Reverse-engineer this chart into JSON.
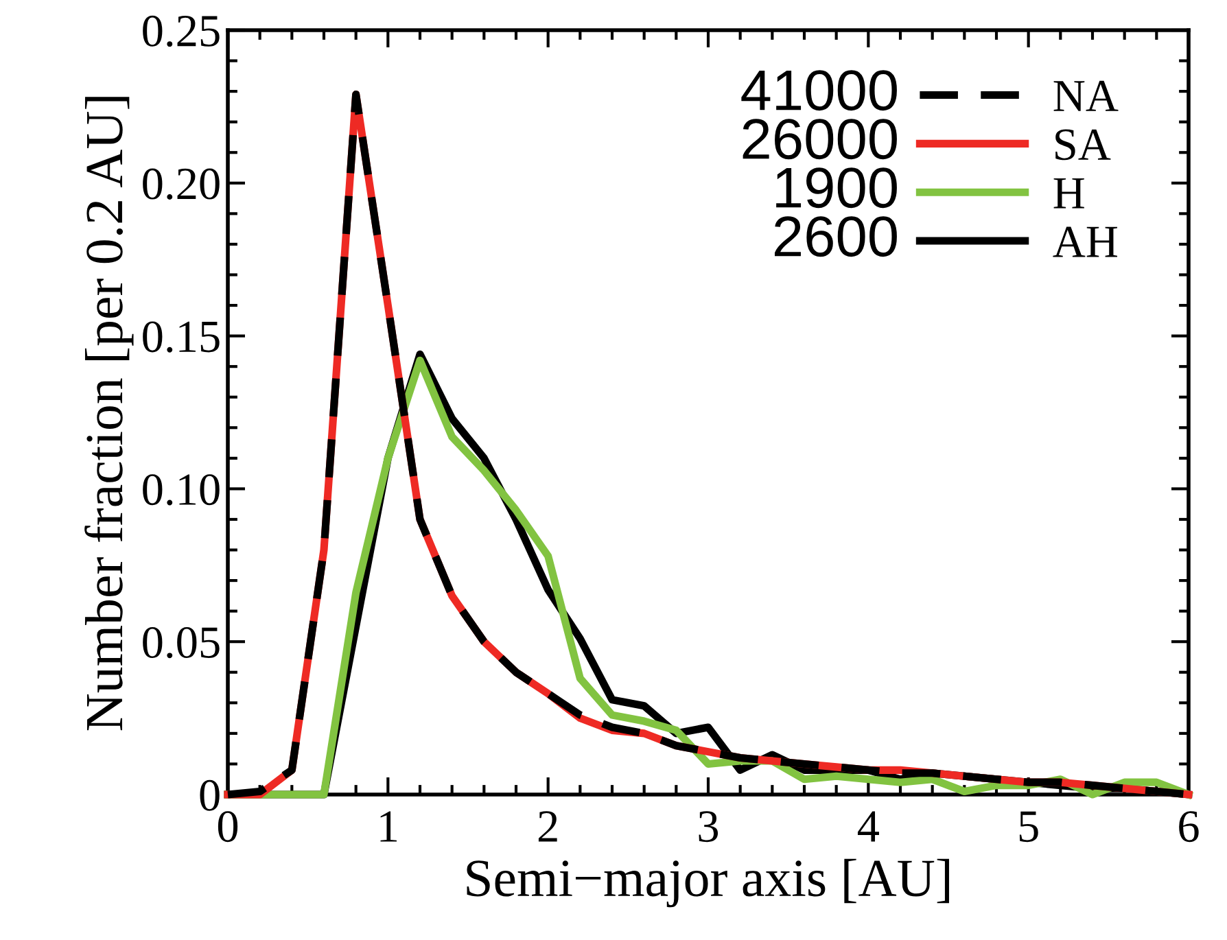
{
  "chart_data": {
    "type": "line",
    "xlabel": "Semi−major axis [AU]",
    "ylabel": "Number fraction [per 0.2 AU]",
    "x": [
      0,
      0.2,
      0.4,
      0.6,
      0.8,
      1.0,
      1.2,
      1.4,
      1.6,
      1.8,
      2.0,
      2.2,
      2.4,
      2.6,
      2.8,
      3.0,
      3.2,
      3.4,
      3.6,
      3.8,
      4.0,
      4.2,
      4.4,
      4.6,
      4.8,
      5.0,
      5.2,
      5.4,
      5.6,
      5.8,
      6.0
    ],
    "series": [
      {
        "name": "NA",
        "color": "#000000",
        "line_style": "dashed",
        "values": [
          0,
          0.001,
          0.008,
          0.08,
          0.229,
          0.16,
          0.09,
          0.065,
          0.05,
          0.04,
          0.033,
          0.026,
          0.022,
          0.02,
          0.016,
          0.014,
          0.012,
          0.011,
          0.01,
          0.009,
          0.008,
          0.007,
          0.007,
          0.006,
          0.005,
          0.004,
          0.004,
          0.003,
          0.002,
          0.001,
          0
        ]
      },
      {
        "name": "SA",
        "color": "#ee2a24",
        "line_style": "solid",
        "values": [
          0,
          0,
          0.008,
          0.08,
          0.229,
          0.16,
          0.09,
          0.065,
          0.05,
          0.04,
          0.033,
          0.025,
          0.021,
          0.02,
          0.016,
          0.014,
          0.012,
          0.011,
          0.01,
          0.009,
          0.008,
          0.008,
          0.007,
          0.006,
          0.005,
          0.004,
          0.004,
          0.003,
          0.002,
          0.001,
          0
        ]
      },
      {
        "name": "H",
        "color": "#82c341",
        "line_style": "solid",
        "values": [
          0,
          0,
          0,
          0,
          0.066,
          0.11,
          0.142,
          0.117,
          0.106,
          0.093,
          0.078,
          0.038,
          0.026,
          0.024,
          0.021,
          0.01,
          0.011,
          0.011,
          0.005,
          0.006,
          0.005,
          0.004,
          0.005,
          0.001,
          0.003,
          0.003,
          0.005,
          0,
          0.004,
          0.004,
          0
        ]
      },
      {
        "name": "AH",
        "color": "#000000",
        "line_style": "solid",
        "values": [
          0,
          0,
          0,
          0,
          0.055,
          0.11,
          0.144,
          0.123,
          0.11,
          0.09,
          0.067,
          0.051,
          0.031,
          0.029,
          0.02,
          0.022,
          0.008,
          0.013,
          0.008,
          0.008,
          0.008,
          0.005,
          0.007,
          0.006,
          0.005,
          0.004,
          0.003,
          0.002,
          0.002,
          0.001,
          0
        ]
      }
    ],
    "annotations": [
      "41000",
      "26000",
      "1900",
      "2600"
    ],
    "xlim": [
      0,
      6
    ],
    "ylim": [
      0,
      0.25
    ],
    "xticks": [
      0,
      1,
      2,
      3,
      4,
      5,
      6
    ],
    "yticks": [
      0,
      0.05,
      {
        "value": 0.1,
        "label": "0.10"
      },
      {
        "value": 0.15,
        "label": "0.15"
      },
      {
        "value": 0.2,
        "label": "0.20"
      },
      {
        "value": 0.25,
        "label": "0.25"
      }
    ],
    "grid": false,
    "legend": "top right",
    "marker": "none"
  }
}
